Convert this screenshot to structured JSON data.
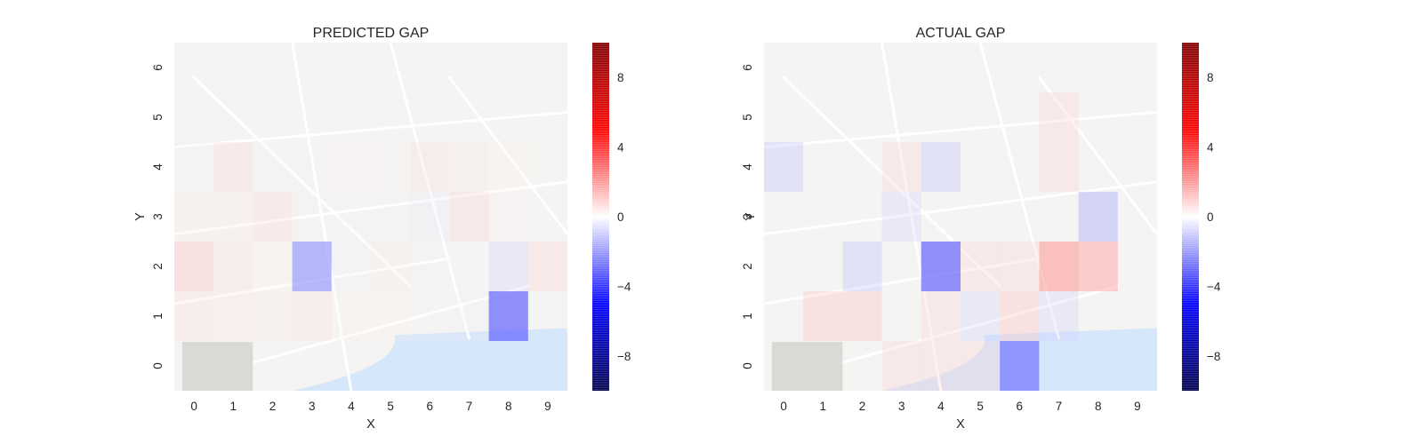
{
  "colors": {
    "negative": "#0000ff",
    "neutral": "#ffffff",
    "positive": "#ff0000",
    "map_water": "#d6e6fb",
    "map_land": "#f4f4f2"
  },
  "chart_data": [
    {
      "type": "heatmap",
      "title": "PREDICTED GAP",
      "xlabel": "X",
      "ylabel": "Y",
      "x": [
        0,
        1,
        2,
        3,
        4,
        5,
        6,
        7,
        8,
        9
      ],
      "y": [
        0,
        1,
        2,
        3,
        4,
        5,
        6
      ],
      "xlim": [
        -0.5,
        9.5
      ],
      "ylim": [
        -0.5,
        6.5
      ],
      "background": "map",
      "grid": false,
      "colorbar": {
        "min": -10,
        "max": 10,
        "ticks": [
          -8,
          -4,
          0,
          4,
          8
        ],
        "tick_labels": [
          "−8",
          "−4",
          "0",
          "4",
          "8"
        ],
        "colormap": "seismic"
      },
      "cells": [
        {
          "x": 0,
          "y": 1,
          "value": 1.5
        },
        {
          "x": 1,
          "y": 1,
          "value": 1.3
        },
        {
          "x": 2,
          "y": 1,
          "value": 1.2
        },
        {
          "x": 3,
          "y": 1,
          "value": 1.5
        },
        {
          "x": 4,
          "y": 1,
          "value": 0.8
        },
        {
          "x": 5,
          "y": 1,
          "value": 0.8
        },
        {
          "x": 6,
          "y": 1,
          "value": 0.4
        },
        {
          "x": 7,
          "y": 1,
          "value": -0.5
        },
        {
          "x": 8,
          "y": 1,
          "value": -6.5
        },
        {
          "x": 0,
          "y": 2,
          "value": 2.5
        },
        {
          "x": 1,
          "y": 2,
          "value": 1.5
        },
        {
          "x": 2,
          "y": 2,
          "value": 0.8
        },
        {
          "x": 3,
          "y": 2,
          "value": -5.0
        },
        {
          "x": 4,
          "y": 2,
          "value": -0.8
        },
        {
          "x": 5,
          "y": 2,
          "value": 1.2
        },
        {
          "x": 6,
          "y": 2,
          "value": 0.6
        },
        {
          "x": 7,
          "y": 2,
          "value": 0.4
        },
        {
          "x": 8,
          "y": 2,
          "value": -2.0
        },
        {
          "x": 9,
          "y": 2,
          "value": 2.0
        },
        {
          "x": 0,
          "y": 3,
          "value": 1.0
        },
        {
          "x": 1,
          "y": 3,
          "value": 1.0
        },
        {
          "x": 2,
          "y": 3,
          "value": 1.8
        },
        {
          "x": 3,
          "y": 3,
          "value": 0.6
        },
        {
          "x": 4,
          "y": 3,
          "value": 0.5
        },
        {
          "x": 5,
          "y": 3,
          "value": 0.5
        },
        {
          "x": 6,
          "y": 3,
          "value": -1.0
        },
        {
          "x": 7,
          "y": 3,
          "value": 2.0
        },
        {
          "x": 8,
          "y": 3,
          "value": 0.7
        },
        {
          "x": 0,
          "y": 4,
          "value": -0.8
        },
        {
          "x": 1,
          "y": 4,
          "value": 1.8
        },
        {
          "x": 2,
          "y": 4,
          "value": 0.5
        },
        {
          "x": 3,
          "y": 4,
          "value": 0.5
        },
        {
          "x": 4,
          "y": 4,
          "value": 0.7
        },
        {
          "x": 5,
          "y": 4,
          "value": 0.5
        },
        {
          "x": 6,
          "y": 4,
          "value": 1.6
        },
        {
          "x": 7,
          "y": 4,
          "value": 1.0
        },
        {
          "x": 8,
          "y": 4,
          "value": 0.8
        }
      ]
    },
    {
      "type": "heatmap",
      "title": "ACTUAL GAP",
      "xlabel": "X",
      "ylabel": "Y",
      "x": [
        0,
        1,
        2,
        3,
        4,
        5,
        6,
        7,
        8,
        9
      ],
      "y": [
        0,
        1,
        2,
        3,
        4,
        5,
        6
      ],
      "xlim": [
        -0.5,
        9.5
      ],
      "ylim": [
        -0.5,
        6.5
      ],
      "background": "map",
      "grid": false,
      "colorbar": {
        "min": -10,
        "max": 10,
        "ticks": [
          -8,
          -4,
          0,
          4,
          8
        ],
        "tick_labels": [
          "−8",
          "−4",
          "0",
          "4",
          "8"
        ],
        "colormap": "seismic"
      },
      "cells": [
        {
          "x": 3,
          "y": 0,
          "value": 2.0
        },
        {
          "x": 4,
          "y": 0,
          "value": 2.0
        },
        {
          "x": 5,
          "y": 0,
          "value": 2.0
        },
        {
          "x": 6,
          "y": 0,
          "value": -6.0
        },
        {
          "x": 1,
          "y": 1,
          "value": 2.5
        },
        {
          "x": 2,
          "y": 1,
          "value": 2.5
        },
        {
          "x": 4,
          "y": 1,
          "value": 2.0
        },
        {
          "x": 5,
          "y": 1,
          "value": -2.0
        },
        {
          "x": 6,
          "y": 1,
          "value": 2.5
        },
        {
          "x": 7,
          "y": 1,
          "value": -2.0
        },
        {
          "x": 2,
          "y": 2,
          "value": -2.5
        },
        {
          "x": 4,
          "y": 2,
          "value": -6.5
        },
        {
          "x": 5,
          "y": 2,
          "value": 2.0
        },
        {
          "x": 6,
          "y": 2,
          "value": 2.0
        },
        {
          "x": 7,
          "y": 2,
          "value": 4.5
        },
        {
          "x": 8,
          "y": 2,
          "value": 4.0
        },
        {
          "x": 3,
          "y": 3,
          "value": -2.0
        },
        {
          "x": 8,
          "y": 3,
          "value": -3.5
        },
        {
          "x": 0,
          "y": 4,
          "value": -2.5
        },
        {
          "x": 3,
          "y": 4,
          "value": 2.0
        },
        {
          "x": 4,
          "y": 4,
          "value": -2.5
        },
        {
          "x": 7,
          "y": 4,
          "value": 2.0
        },
        {
          "x": 7,
          "y": 5,
          "value": 2.0
        }
      ]
    }
  ]
}
